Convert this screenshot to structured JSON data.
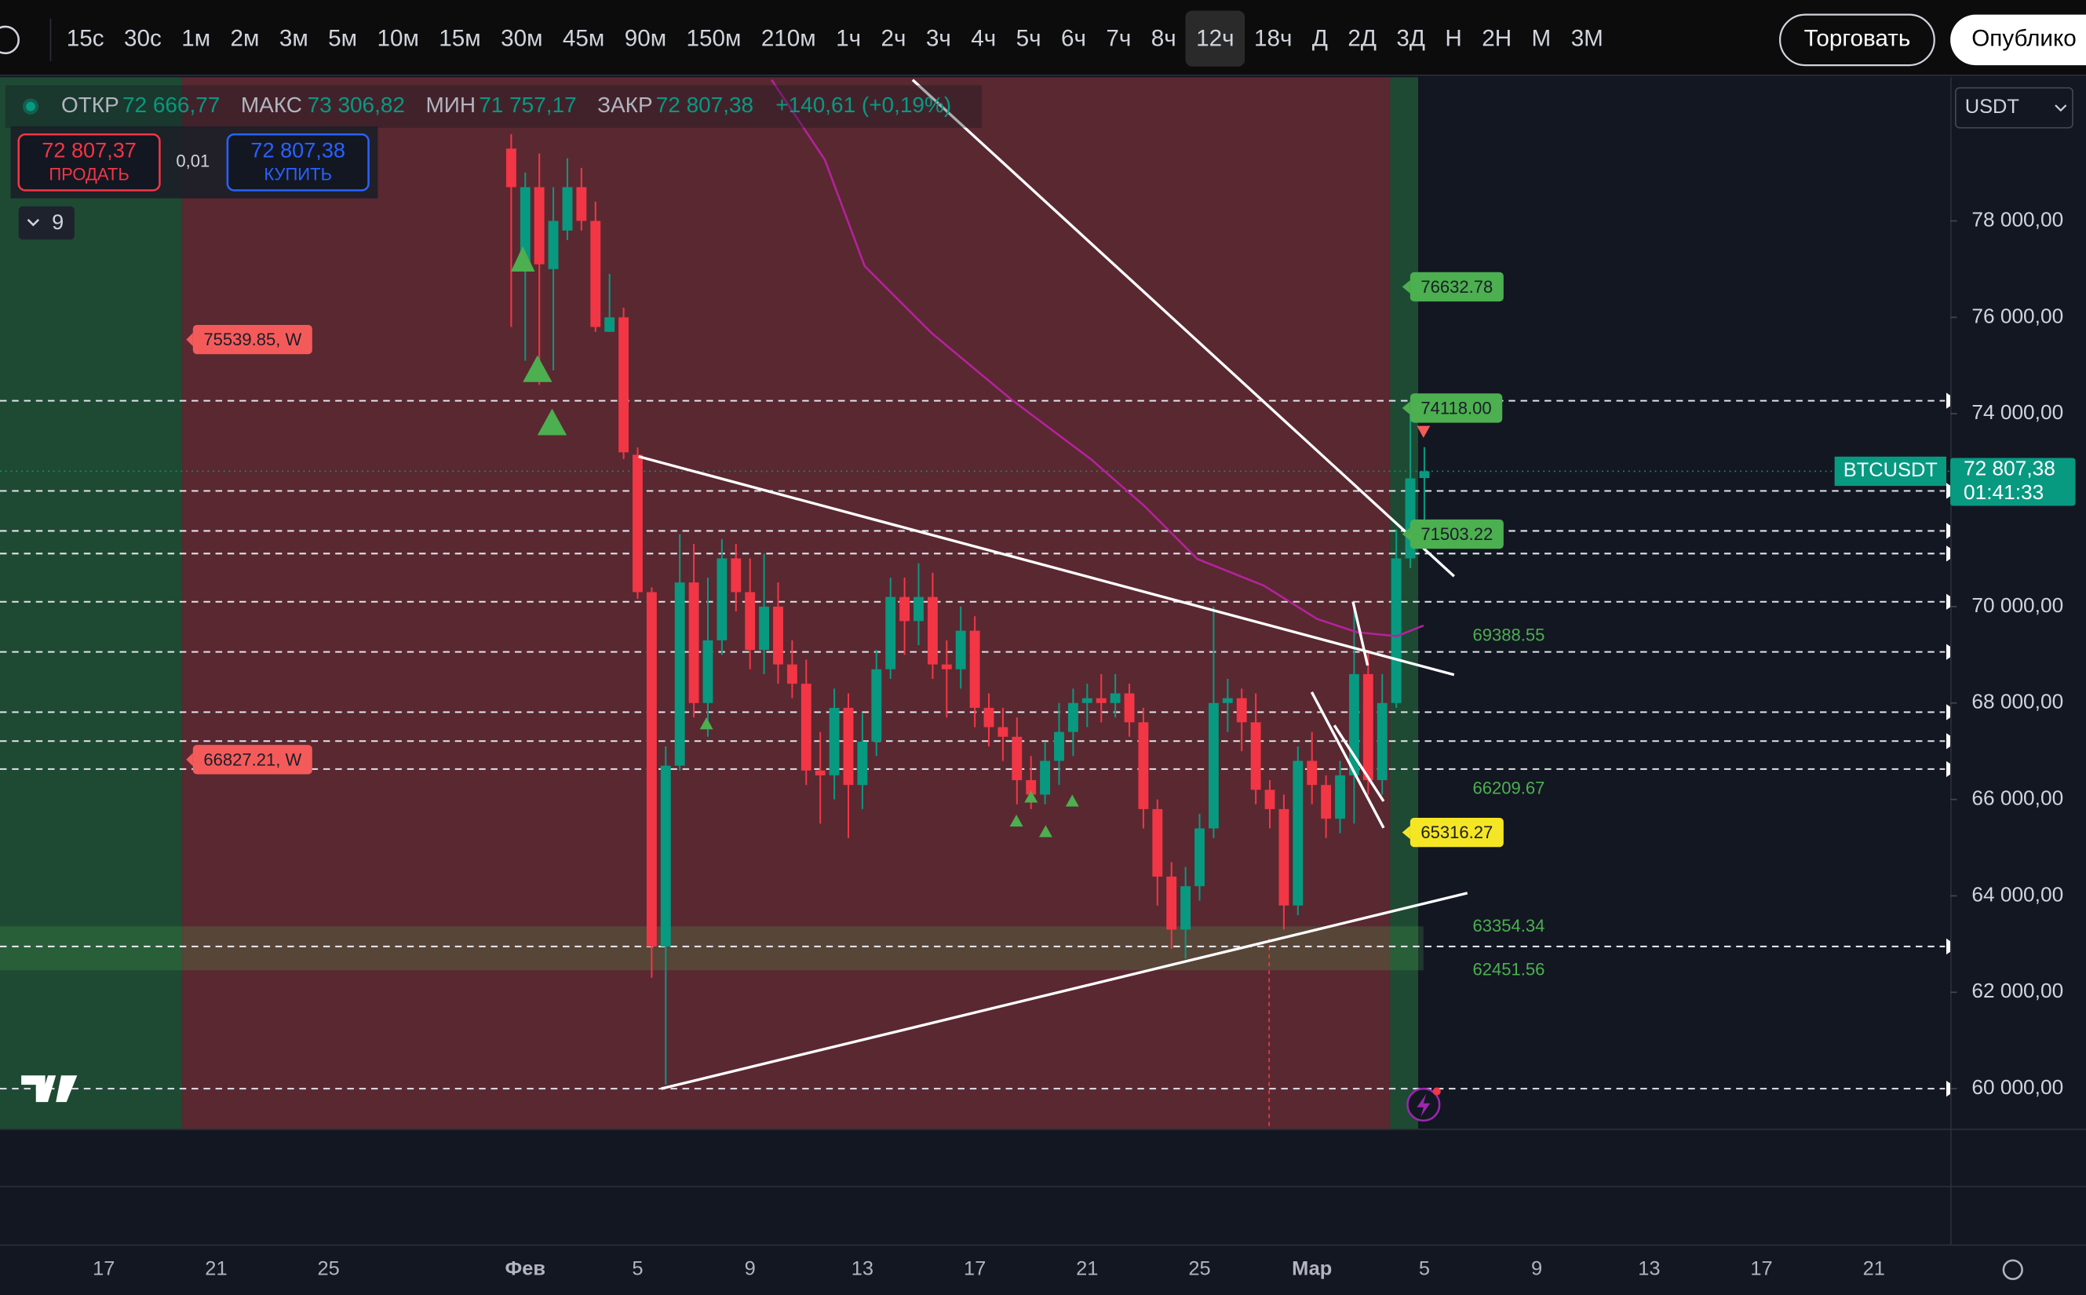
{
  "toolbar": {
    "intervals": [
      "15с",
      "30с",
      "1м",
      "2м",
      "3м",
      "5м",
      "10м",
      "15м",
      "30м",
      "45м",
      "90м",
      "150м",
      "210м",
      "1ч",
      "2ч",
      "3ч",
      "4ч",
      "5ч",
      "6ч",
      "7ч",
      "8ч",
      "12ч",
      "18ч",
      "Д",
      "2Д",
      "3Д",
      "Н",
      "2Н",
      "М",
      "3М"
    ],
    "selected_interval": 21,
    "buttons": [
      "Торговать",
      "Опублико"
    ]
  },
  "legend": {
    "open_label": "ОТКР",
    "open": "72 666,77",
    "high_label": "МАКС",
    "high": "73 306,82",
    "low_label": "МИН",
    "low": "71 757,17",
    "close_label": "ЗАКР",
    "close": "72 807,38",
    "change": "+140,61 (+0,19%)"
  },
  "order_panel": {
    "sell_price": "72 807,37",
    "sell": "ПРОДАТЬ",
    "quantity": "0,01",
    "buy_price": "72 807,38",
    "buy": "КУПИТЬ"
  },
  "indicators_count": 9,
  "currency": "USDT",
  "chart_data": {
    "type": "candlestick",
    "symbol": "BTCUSDT",
    "categories": [
      null,
      null,
      null,
      null,
      "17",
      null,
      null,
      null,
      null,
      null,
      null,
      null,
      "21",
      null,
      null,
      null,
      null,
      null,
      null,
      null,
      "25",
      null,
      null,
      null,
      null,
      null,
      null,
      null,
      null,
      null,
      null,
      null,
      null,
      null,
      "Фев",
      null,
      null,
      null,
      null,
      null,
      null,
      null,
      "5",
      null,
      null,
      null,
      null,
      null,
      null,
      null,
      "9",
      null,
      null,
      null,
      null,
      null,
      null,
      null,
      "13",
      null,
      null,
      null,
      null,
      null,
      null,
      null,
      "17",
      null,
      null,
      null,
      null,
      null,
      null,
      null,
      "21",
      null,
      null,
      null,
      null,
      null,
      null,
      null,
      "25",
      null,
      null,
      null,
      null,
      null,
      null,
      null,
      "Мар",
      null,
      null,
      null,
      null,
      null,
      null,
      null,
      "5",
      null,
      null,
      null,
      null,
      null,
      null,
      null,
      "9",
      null,
      null,
      null,
      null,
      null,
      null,
      null,
      "13",
      null,
      null,
      null,
      null,
      null,
      null,
      null,
      "17",
      null,
      null,
      null,
      null,
      null,
      null,
      null,
      "21",
      null,
      null,
      null,
      null,
      null
    ],
    "open": [
      null,
      null,
      null,
      null,
      null,
      null,
      null,
      null,
      null,
      null,
      null,
      null,
      null,
      null,
      null,
      null,
      null,
      null,
      null,
      null,
      null,
      null,
      null,
      null,
      null,
      null,
      null,
      null,
      null,
      null,
      null,
      null,
      null,
      79500,
      77100,
      78700,
      77000,
      77800,
      78700,
      78000,
      75700,
      76000,
      73150,
      70300,
      62950,
      66700,
      70500,
      68000,
      69300,
      71000,
      70300,
      69100,
      70000,
      68800,
      68400,
      66600,
      66500,
      67900,
      66300,
      67200,
      68700,
      70200,
      69700,
      70200,
      68800,
      68700,
      69500,
      67900,
      67500,
      67300,
      66400,
      66100,
      66800,
      67400,
      68000,
      68100,
      68000,
      68200,
      67600,
      65800,
      64400,
      63300,
      64200,
      65400,
      68000,
      68100,
      67600,
      66200,
      65800,
      63800,
      66800,
      66300,
      65600,
      66500,
      68600,
      66400,
      68000,
      71000,
      72666.77,
      null,
      null,
      null,
      null,
      null,
      null,
      null,
      null,
      null,
      null,
      null,
      null,
      null,
      null,
      null,
      null,
      null,
      null,
      null,
      null,
      null,
      null,
      null,
      null,
      null,
      null,
      null,
      null,
      null,
      null,
      null,
      null,
      null,
      null,
      null,
      null,
      null
    ],
    "high": [
      null,
      null,
      null,
      null,
      null,
      null,
      null,
      null,
      null,
      null,
      null,
      null,
      null,
      null,
      null,
      null,
      null,
      null,
      null,
      null,
      null,
      null,
      null,
      null,
      null,
      null,
      null,
      null,
      null,
      null,
      null,
      null,
      null,
      79800,
      79000,
      79400,
      78700,
      79300,
      79100,
      78400,
      76900,
      76200,
      73300,
      70400,
      67100,
      71500,
      71300,
      70600,
      71400,
      71300,
      71000,
      71100,
      70500,
      69300,
      68900,
      67400,
      68300,
      68200,
      67800,
      69100,
      70600,
      70600,
      70900,
      70700,
      69300,
      70000,
      69800,
      68200,
      67900,
      67700,
      66900,
      67200,
      68000,
      68300,
      68400,
      68600,
      68600,
      68400,
      67900,
      66000,
      64700,
      64600,
      65700,
      70000,
      68500,
      68300,
      68200,
      66400,
      66100,
      67100,
      67400,
      66500,
      66800,
      70000,
      69100,
      68600,
      71600,
      74100,
      73306.82,
      null,
      null,
      null,
      null,
      null,
      null,
      null,
      null,
      null,
      null,
      null,
      null,
      null,
      null,
      null,
      null,
      null,
      null,
      null,
      null,
      null,
      null,
      null,
      null,
      null,
      null,
      null,
      null,
      null,
      null,
      null,
      null,
      null,
      null,
      null,
      null,
      null
    ],
    "low": [
      null,
      null,
      null,
      null,
      null,
      null,
      null,
      null,
      null,
      null,
      null,
      null,
      null,
      null,
      null,
      null,
      null,
      null,
      null,
      null,
      null,
      null,
      null,
      null,
      null,
      null,
      null,
      null,
      null,
      null,
      null,
      null,
      null,
      75800,
      75100,
      74600,
      74900,
      77600,
      77800,
      75700,
      75700,
      73060,
      70160,
      62300,
      60080,
      66600,
      67700,
      67300,
      69000,
      69900,
      68700,
      68600,
      68400,
      68100,
      66300,
      65500,
      66000,
      65200,
      65800,
      66900,
      68500,
      69000,
      69200,
      68500,
      67700,
      68300,
      67500,
      67100,
      66800,
      65900,
      65800,
      65900,
      66300,
      66900,
      67500,
      67600,
      67700,
      67300,
      65400,
      63800,
      62900,
      62700,
      63900,
      65200,
      67400,
      67000,
      65900,
      65400,
      63300,
      63600,
      65900,
      65200,
      65300,
      65500,
      66100,
      66100,
      67900,
      70800,
      71757.17,
      null,
      null,
      null,
      null,
      null,
      null,
      null,
      null,
      null,
      null,
      null,
      null,
      null,
      null,
      null,
      null,
      null,
      null,
      null,
      null,
      null,
      null,
      null,
      null,
      null,
      null,
      null,
      null,
      null,
      null,
      null,
      null,
      null,
      null,
      null,
      null,
      null
    ],
    "close": [
      null,
      null,
      null,
      null,
      null,
      null,
      null,
      null,
      null,
      null,
      null,
      null,
      null,
      null,
      null,
      null,
      null,
      null,
      null,
      null,
      null,
      null,
      null,
      null,
      null,
      null,
      null,
      null,
      null,
      null,
      null,
      null,
      null,
      78700,
      78700,
      77100,
      78000,
      78700,
      78000,
      75800,
      76000,
      73200,
      70300,
      62950,
      66700,
      70500,
      68000,
      69300,
      71000,
      70300,
      69100,
      70000,
      68800,
      68400,
      66600,
      66500,
      67900,
      66300,
      67200,
      68700,
      70200,
      69700,
      70200,
      68800,
      68700,
      69500,
      67900,
      67500,
      67300,
      66400,
      66100,
      66800,
      67400,
      68000,
      68100,
      68000,
      68200,
      67600,
      65800,
      64400,
      63300,
      64200,
      65400,
      68000,
      68100,
      67600,
      66200,
      65800,
      63800,
      66800,
      66300,
      65600,
      66500,
      68600,
      66400,
      68000,
      71000,
      72660,
      72807.38,
      null,
      null,
      null,
      null,
      null,
      null,
      null,
      null,
      null,
      null,
      null,
      null,
      null,
      null,
      null,
      null,
      null,
      null,
      null,
      null,
      null,
      null,
      null,
      null,
      null,
      null,
      null,
      null,
      null,
      null,
      null,
      null,
      null,
      null,
      null,
      null,
      null
    ],
    "up_color": "#089981",
    "down_color": "#f23645",
    "ylim": [
      59172,
      80981
    ],
    "yticks": [
      {
        "value": 60000,
        "label": "60 000,00"
      },
      {
        "value": 62000,
        "label": "62 000,00"
      },
      {
        "value": 64000,
        "label": "64 000,00"
      },
      {
        "value": 66000,
        "label": "66 000,00"
      },
      {
        "value": 68000,
        "label": "68 000,00"
      },
      {
        "value": 70000,
        "label": "70 000,00"
      },
      {
        "value": 74000,
        "label": "74 000,00"
      },
      {
        "value": 76000,
        "label": "76 000,00"
      },
      {
        "value": 78000,
        "label": "78 000,00"
      }
    ],
    "grid": false,
    "levels": [
      74270,
      72400,
      71570,
      71100,
      70100,
      69060,
      67810,
      67210,
      66630,
      62950,
      60000
    ],
    "price_labels": [
      {
        "value": 76632.78,
        "label": "76632.78",
        "kind": "tag",
        "color": "#4caf50"
      },
      {
        "value": 74118.0,
        "label": "74118.00",
        "kind": "tag",
        "color": "#4caf50"
      },
      {
        "value": 71503.22,
        "label": "71503.22",
        "kind": "tag",
        "color": "#4caf50"
      },
      {
        "value": 69388.55,
        "label": "69388.55",
        "kind": "text",
        "color": "#4caf50"
      },
      {
        "value": 66209.67,
        "label": "66209.67",
        "kind": "text",
        "color": "#4caf50"
      },
      {
        "value": 65316.27,
        "label": "65316.27",
        "kind": "tag",
        "color": "#f5e625"
      },
      {
        "value": 63354.34,
        "label": "63354.34",
        "kind": "text",
        "color": "#4caf50"
      },
      {
        "value": 62451.56,
        "label": "62451.56",
        "kind": "text",
        "color": "#4caf50"
      },
      {
        "value": 75539.85,
        "label": "75539.85, W",
        "kind": "tag",
        "color": "#f55a5a"
      },
      {
        "value": 66827.21,
        "label": "66827.21, W",
        "kind": "tag",
        "color": "#f55a5a"
      }
    ],
    "current_price": {
      "value": 72807.38,
      "label": "72 807,38"
    },
    "countdown": "01:41:33"
  }
}
